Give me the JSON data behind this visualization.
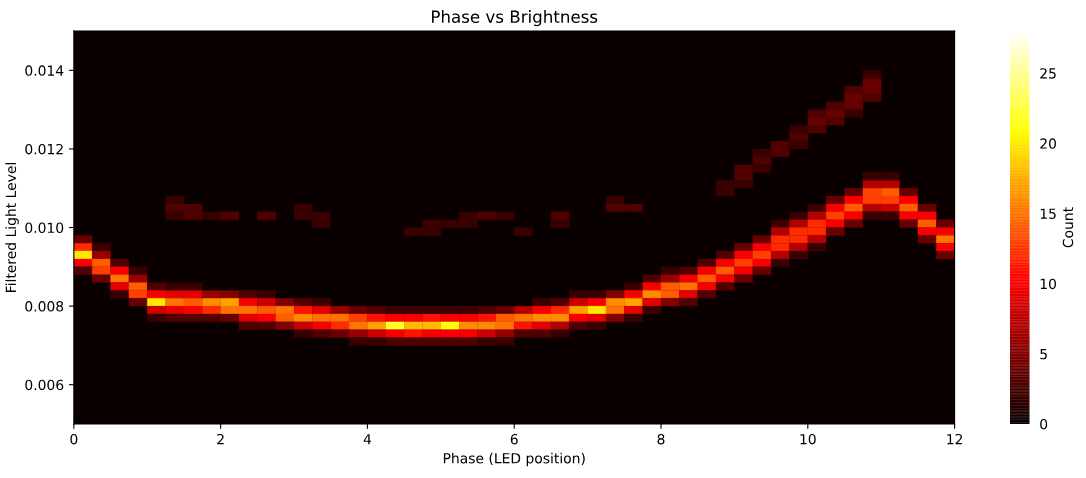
{
  "chart_data": {
    "type": "scatter",
    "title": "Phase vs Brightness",
    "xlabel": "Phase (LED position)",
    "ylabel": "Filtered Light Level",
    "clabel": "Count",
    "marker": "square",
    "xlim": [
      0,
      12
    ],
    "xticks": [
      0,
      2,
      4,
      6,
      8,
      10,
      12
    ],
    "ylim": [
      0.005,
      0.015
    ],
    "yticks": [
      0.006,
      0.008,
      {
        "value": 0.01,
        "label": "0.010"
      },
      0.012,
      0.014
    ],
    "clim": [
      0,
      28
    ],
    "cticks": [
      0,
      5,
      10,
      15,
      20,
      25
    ],
    "x": [
      10.875,
      10.875,
      10.625,
      10.875,
      10.625,
      10.875,
      10.375,
      10.625,
      10.125,
      10.375,
      10.625,
      10.125,
      10.375,
      9.875,
      10.125,
      9.875,
      9.625,
      9.875,
      9.375,
      9.625,
      9.375,
      9.125,
      9.375,
      9.125,
      10.875,
      11.125,
      8.875,
      9.125,
      10.875,
      11.125,
      8.875,
      10.625,
      10.875,
      11.125,
      11.375,
      1.375,
      7.375,
      10.375,
      10.625,
      10.875,
      11.125,
      11.375,
      1.375,
      1.625,
      3.125,
      7.375,
      7.625,
      10.125,
      10.375,
      10.625,
      10.875,
      11.125,
      11.375,
      11.625,
      1.375,
      1.625,
      1.875,
      2.125,
      2.625,
      3.125,
      3.375,
      5.375,
      5.625,
      5.875,
      6.625,
      9.875,
      10.125,
      10.375,
      10.625,
      10.875,
      11.125,
      11.375,
      11.625,
      3.375,
      4.875,
      5.125,
      5.375,
      6.625,
      9.625,
      9.875,
      10.125,
      10.375,
      10.625,
      11.375,
      11.625,
      11.875,
      4.625,
      4.875,
      6.125,
      9.625,
      9.875,
      10.125,
      10.375,
      11.625,
      11.875,
      0.125,
      9.375,
      9.625,
      9.875,
      10.125,
      11.625,
      11.875,
      0.125,
      0.375,
      9.125,
      9.375,
      9.625,
      9.875,
      10.125,
      11.875,
      0.125,
      0.375,
      8.875,
      9.125,
      9.375,
      9.625,
      9.875,
      11.875,
      0.125,
      0.375,
      0.625,
      8.625,
      8.875,
      9.125,
      9.375,
      9.625,
      0.125,
      0.375,
      0.625,
      0.875,
      8.125,
      8.375,
      8.625,
      8.875,
      9.125,
      9.375,
      0.375,
      0.625,
      0.875,
      7.875,
      8.125,
      8.375,
      8.625,
      8.875,
      9.125,
      0.625,
      0.875,
      1.125,
      1.375,
      1.625,
      7.625,
      7.875,
      8.125,
      8.375,
      8.625,
      8.875,
      0.625,
      0.875,
      1.125,
      1.375,
      1.625,
      1.875,
      2.125,
      2.375,
      2.625,
      6.875,
      7.125,
      7.375,
      7.625,
      7.875,
      8.125,
      8.375,
      8.625,
      0.875,
      1.125,
      1.375,
      1.625,
      1.875,
      2.125,
      2.375,
      2.625,
      2.875,
      3.125,
      3.375,
      6.375,
      6.625,
      6.875,
      7.125,
      7.375,
      7.625,
      7.875,
      8.125,
      8.375,
      1.125,
      1.375,
      1.625,
      1.875,
      2.125,
      2.375,
      2.625,
      2.875,
      3.125,
      3.375,
      3.625,
      3.875,
      4.125,
      4.375,
      4.625,
      4.875,
      5.125,
      5.375,
      5.625,
      5.875,
      6.125,
      6.375,
      6.625,
      6.875,
      7.125,
      7.375,
      7.625,
      7.875,
      1.125,
      1.375,
      1.625,
      1.875,
      2.125,
      2.375,
      2.625,
      2.875,
      3.125,
      3.375,
      3.625,
      3.875,
      4.125,
      4.375,
      4.625,
      4.875,
      5.125,
      5.375,
      5.625,
      5.875,
      6.125,
      6.375,
      6.625,
      6.875,
      7.125,
      7.375,
      7.625,
      2.375,
      2.625,
      2.875,
      3.125,
      3.375,
      3.625,
      3.875,
      4.125,
      4.375,
      4.625,
      4.875,
      5.125,
      5.375,
      5.625,
      5.875,
      6.125,
      6.375,
      6.625,
      6.875,
      7.125,
      3.125,
      3.375,
      3.625,
      3.875,
      4.125,
      4.375,
      4.625,
      4.875,
      5.125,
      5.375,
      5.625,
      5.875,
      6.125,
      6.375,
      6.625,
      3.875,
      4.125,
      4.375,
      4.625,
      4.875,
      5.125,
      5.375,
      5.625,
      5.875
    ],
    "values": [
      0.0139,
      0.0137,
      0.0135,
      0.0135,
      0.0133,
      0.0133,
      0.0131,
      0.0131,
      0.0129,
      0.0129,
      0.0129,
      0.0127,
      0.0127,
      0.0125,
      0.0125,
      0.0123,
      0.0121,
      0.0121,
      0.0119,
      0.0119,
      0.0117,
      0.0115,
      0.0115,
      0.0113,
      0.0113,
      0.0113,
      0.0111,
      0.0111,
      0.0111,
      0.0111,
      0.0109,
      0.0109,
      0.0109,
      0.0109,
      0.0109,
      0.0107,
      0.0107,
      0.0107,
      0.0107,
      0.0107,
      0.0107,
      0.0107,
      0.0105,
      0.0105,
      0.0105,
      0.0105,
      0.0105,
      0.0105,
      0.0105,
      0.0105,
      0.0105,
      0.0105,
      0.0105,
      0.0105,
      0.0103,
      0.0103,
      0.0103,
      0.0103,
      0.0103,
      0.0103,
      0.0103,
      0.0103,
      0.0103,
      0.0103,
      0.0103,
      0.0103,
      0.0103,
      0.0103,
      0.0103,
      0.0103,
      0.0103,
      0.0103,
      0.0103,
      0.0101,
      0.0101,
      0.0101,
      0.0101,
      0.0101,
      0.0101,
      0.0101,
      0.0101,
      0.0101,
      0.0101,
      0.0101,
      0.0101,
      0.0101,
      0.0099,
      0.0099,
      0.0099,
      0.0099,
      0.0099,
      0.0099,
      0.0099,
      0.0099,
      0.0099,
      0.0097,
      0.0097,
      0.0097,
      0.0097,
      0.0097,
      0.0097,
      0.0097,
      0.0095,
      0.0095,
      0.0095,
      0.0095,
      0.0095,
      0.0095,
      0.0095,
      0.0095,
      0.0093,
      0.0093,
      0.0093,
      0.0093,
      0.0093,
      0.0093,
      0.0093,
      0.0093,
      0.0091,
      0.0091,
      0.0091,
      0.0091,
      0.0091,
      0.0091,
      0.0091,
      0.0091,
      0.0089,
      0.0089,
      0.0089,
      0.0089,
      0.0089,
      0.0089,
      0.0089,
      0.0089,
      0.0089,
      0.0089,
      0.0087,
      0.0087,
      0.0087,
      0.0087,
      0.0087,
      0.0087,
      0.0087,
      0.0087,
      0.0087,
      0.0085,
      0.0085,
      0.0085,
      0.0085,
      0.0085,
      0.0085,
      0.0085,
      0.0085,
      0.0085,
      0.0085,
      0.0085,
      0.0083,
      0.0083,
      0.0083,
      0.0083,
      0.0083,
      0.0083,
      0.0083,
      0.0083,
      0.0083,
      0.0083,
      0.0083,
      0.0083,
      0.0083,
      0.0083,
      0.0083,
      0.0083,
      0.0083,
      0.0081,
      0.0081,
      0.0081,
      0.0081,
      0.0081,
      0.0081,
      0.0081,
      0.0081,
      0.0081,
      0.0081,
      0.0081,
      0.0081,
      0.0081,
      0.0081,
      0.0081,
      0.0081,
      0.0081,
      0.0081,
      0.0081,
      0.0081,
      0.0079,
      0.0079,
      0.0079,
      0.0079,
      0.0079,
      0.0079,
      0.0079,
      0.0079,
      0.0079,
      0.0079,
      0.0079,
      0.0079,
      0.0079,
      0.0079,
      0.0079,
      0.0079,
      0.0079,
      0.0079,
      0.0079,
      0.0079,
      0.0079,
      0.0079,
      0.0079,
      0.0079,
      0.0079,
      0.0079,
      0.0079,
      0.0079,
      0.0077,
      0.0077,
      0.0077,
      0.0077,
      0.0077,
      0.0077,
      0.0077,
      0.0077,
      0.0077,
      0.0077,
      0.0077,
      0.0077,
      0.0077,
      0.0077,
      0.0077,
      0.0077,
      0.0077,
      0.0077,
      0.0077,
      0.0077,
      0.0077,
      0.0077,
      0.0077,
      0.0077,
      0.0077,
      0.0077,
      0.0077,
      0.0075,
      0.0075,
      0.0075,
      0.0075,
      0.0075,
      0.0075,
      0.0075,
      0.0075,
      0.0075,
      0.0075,
      0.0075,
      0.0075,
      0.0075,
      0.0075,
      0.0075,
      0.0075,
      0.0075,
      0.0075,
      0.0075,
      0.0075,
      0.0073,
      0.0073,
      0.0073,
      0.0073,
      0.0073,
      0.0073,
      0.0073,
      0.0073,
      0.0073,
      0.0073,
      0.0073,
      0.0073,
      0.0073,
      0.0073,
      0.0073,
      0.0071,
      0.0071,
      0.0071,
      0.0071,
      0.0071,
      0.0071,
      0.0071,
      0.0071,
      0.0071
    ],
    "cvalues": [
      2,
      4,
      3,
      4,
      4,
      3,
      3,
      4,
      3,
      4,
      2,
      4,
      3,
      2,
      3,
      3,
      3,
      2,
      2,
      3,
      3,
      3,
      2,
      3,
      2,
      2,
      2,
      2,
      7,
      7,
      2,
      4,
      13,
      14,
      4,
      2,
      2,
      4,
      10,
      13,
      13,
      10,
      3,
      3,
      2,
      3,
      3,
      2,
      10,
      14,
      7,
      8,
      14,
      4,
      2,
      3,
      2,
      3,
      3,
      2,
      2,
      2,
      3,
      2,
      3,
      2,
      7,
      13,
      10,
      2,
      2,
      10,
      10,
      2,
      2,
      2,
      2,
      2,
      2,
      7,
      12,
      10,
      4,
      4,
      14,
      4,
      2,
      2,
      2,
      7,
      12,
      12,
      4,
      10,
      10,
      4,
      4,
      12,
      12,
      7,
      4,
      15,
      12,
      2,
      4,
      10,
      12,
      7,
      2,
      10,
      20,
      6,
      3,
      10,
      13,
      7,
      2,
      4,
      10,
      14,
      3,
      3,
      10,
      13,
      10,
      2,
      3,
      13,
      10,
      2,
      2,
      3,
      10,
      14,
      10,
      4,
      4,
      15,
      6,
      3,
      6,
      10,
      14,
      10,
      4,
      9,
      14,
      3,
      2,
      2,
      2,
      10,
      14,
      15,
      10,
      3,
      2,
      13,
      10,
      9,
      9,
      6,
      5,
      3,
      2,
      2,
      2,
      5,
      10,
      16,
      14,
      9,
      3,
      4,
      20,
      15,
      14,
      16,
      17,
      10,
      8,
      5,
      3,
      2,
      2,
      3,
      8,
      10,
      16,
      17,
      9,
      5,
      3,
      8,
      9,
      10,
      12,
      15,
      15,
      14,
      15,
      11,
      9,
      6,
      4,
      3,
      2,
      2,
      2,
      2,
      2,
      3,
      4,
      7,
      10,
      12,
      17,
      20,
      15,
      9,
      2,
      2,
      3,
      3,
      3,
      4,
      9,
      10,
      14,
      16,
      15,
      15,
      13,
      11,
      10,
      10,
      11,
      10,
      10,
      11,
      14,
      15,
      16,
      16,
      10,
      9,
      5,
      2,
      3,
      3,
      5,
      8,
      10,
      12,
      15,
      17,
      22,
      18,
      18,
      21,
      16,
      16,
      15,
      11,
      9,
      7,
      3,
      2,
      2,
      3,
      4,
      6,
      8,
      10,
      11,
      10,
      10,
      10,
      8,
      6,
      3,
      3,
      2,
      2,
      2,
      3,
      3,
      3,
      3,
      3,
      2,
      2
    ]
  }
}
